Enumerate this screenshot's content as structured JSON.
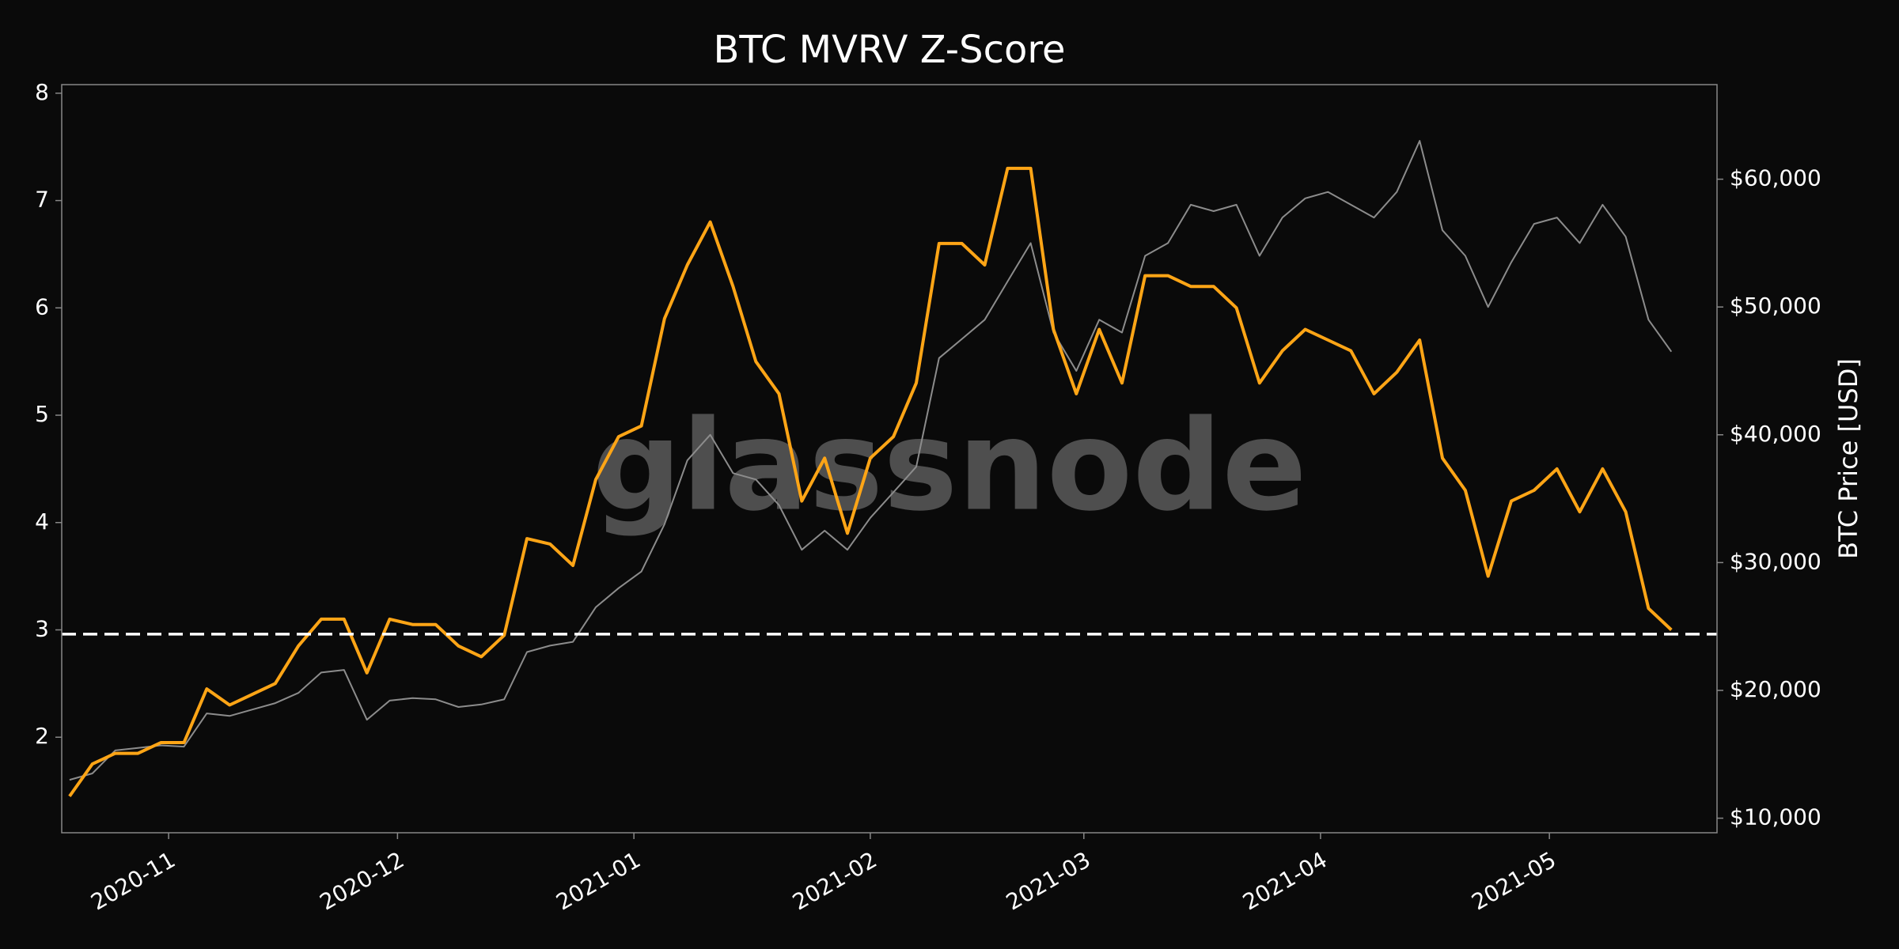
{
  "chart_data": {
    "type": "line",
    "title": "BTC MVRV Z-Score",
    "y2label": "BTC Price [USD]",
    "watermark": "glassnode",
    "x": [
      2020.7973,
      2020.8055,
      2020.8137,
      2020.8219,
      2020.8301,
      2020.8384,
      2020.8466,
      2020.8548,
      2020.863,
      2020.8712,
      2020.8795,
      2020.8877,
      2020.8959,
      2020.9041,
      2020.9123,
      2020.9205,
      2020.9288,
      2020.937,
      2020.9452,
      2020.9534,
      2020.9616,
      2020.9699,
      2020.9781,
      2020.9863,
      2020.9945,
      2021.0027,
      2021.011,
      2021.0192,
      2021.0274,
      2021.0356,
      2021.0438,
      2021.0521,
      2021.0603,
      2021.0685,
      2021.0767,
      2021.0849,
      2021.0932,
      2021.1014,
      2021.1096,
      2021.1178,
      2021.126,
      2021.1342,
      2021.1425,
      2021.1507,
      2021.1589,
      2021.1671,
      2021.1753,
      2021.1836,
      2021.1918,
      2021.2,
      2021.2082,
      2021.2164,
      2021.2247,
      2021.2329,
      2021.2411,
      2021.2493,
      2021.2575,
      2021.2658,
      2021.274,
      2021.2822,
      2021.2904,
      2021.2986,
      2021.3068,
      2021.3151,
      2021.3233,
      2021.3315,
      2021.3397,
      2021.3479,
      2021.3562,
      2021.3644,
      2021.3726
    ],
    "series": [
      {
        "color": "#8c8c8c",
        "axis": "y2",
        "values": [
          13000,
          13500,
          15300,
          15500,
          15700,
          15600,
          18200,
          18000,
          18500,
          19000,
          19800,
          21400,
          21600,
          17700,
          19200,
          19400,
          19300,
          18700,
          18900,
          19300,
          23000,
          23500,
          23800,
          26500,
          28000,
          29300,
          33000,
          38000,
          40000,
          37000,
          36500,
          34500,
          31000,
          32500,
          31000,
          33500,
          35500,
          37500,
          46000,
          47500,
          49000,
          52000,
          55000,
          48000,
          45000,
          49000,
          48000,
          54000,
          55000,
          58000,
          57500,
          58000,
          54000,
          57000,
          58500,
          59000,
          58000,
          57000,
          59000,
          63000,
          56000,
          54000,
          50000,
          53500,
          56500,
          57000,
          55000,
          58000,
          55500,
          49000,
          46500
        ]
      },
      {
        "color": "#ffa516",
        "values": [
          1.45,
          1.75,
          1.85,
          1.85,
          1.95,
          1.95,
          2.45,
          2.3,
          2.4,
          2.5,
          2.85,
          3.1,
          3.1,
          2.6,
          3.1,
          3.05,
          3.05,
          2.85,
          2.75,
          2.95,
          3.85,
          3.8,
          3.6,
          4.4,
          4.8,
          4.9,
          5.9,
          6.4,
          6.8,
          6.2,
          5.5,
          5.2,
          4.2,
          4.6,
          3.9,
          4.6,
          4.8,
          5.3,
          6.6,
          6.6,
          6.4,
          7.3,
          7.3,
          5.8,
          5.2,
          5.8,
          5.3,
          6.3,
          6.3,
          6.2,
          6.2,
          6.0,
          5.3,
          5.6,
          5.8,
          5.7,
          5.6,
          5.2,
          5.4,
          5.7,
          4.6,
          4.3,
          3.5,
          4.2,
          4.3,
          4.5,
          4.1,
          4.5,
          4.1,
          3.2,
          3.0
        ]
      }
    ],
    "hline": 2.96,
    "xlim": [
      2020.7945,
      2021.389
    ],
    "xticks": [
      {
        "value": 2020.8329,
        "label": "2020-11"
      },
      {
        "value": 2020.9151,
        "label": "2020-12"
      },
      {
        "value": 2021.0,
        "label": "2021-01"
      },
      {
        "value": 2021.0849,
        "label": "2021-02"
      },
      {
        "value": 2021.1616,
        "label": "2021-03"
      },
      {
        "value": 2021.2466,
        "label": "2021-04"
      },
      {
        "value": 2021.3288,
        "label": "2021-05"
      }
    ],
    "ylim": [
      1.11,
      8.08
    ],
    "yticks": [
      2,
      3,
      4,
      5,
      6,
      7,
      8
    ],
    "y2lim": [
      8860,
      67400
    ],
    "y2ticks": [
      {
        "value": 10000,
        "label": "$10,000"
      },
      {
        "value": 20000,
        "label": "$20,000"
      },
      {
        "value": 30000,
        "label": "$30,000"
      },
      {
        "value": 40000,
        "label": "$40,000"
      },
      {
        "value": 50000,
        "label": "$50,000"
      },
      {
        "value": 60000,
        "label": "$60,000"
      }
    ]
  }
}
